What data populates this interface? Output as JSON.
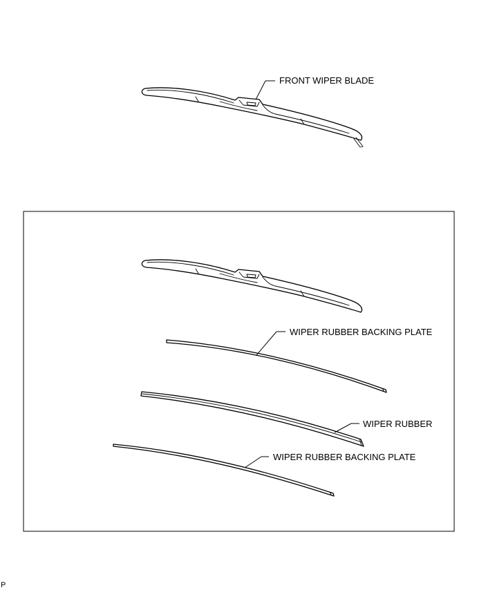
{
  "labels": {
    "front_wiper_blade": "FRONT WIPER BLADE",
    "backing_plate_upper": "WIPER RUBBER BACKING PLATE",
    "wiper_rubber": "WIPER RUBBER",
    "backing_plate_lower": "WIPER RUBBER BACKING PLATE"
  },
  "corner_mark": "P"
}
